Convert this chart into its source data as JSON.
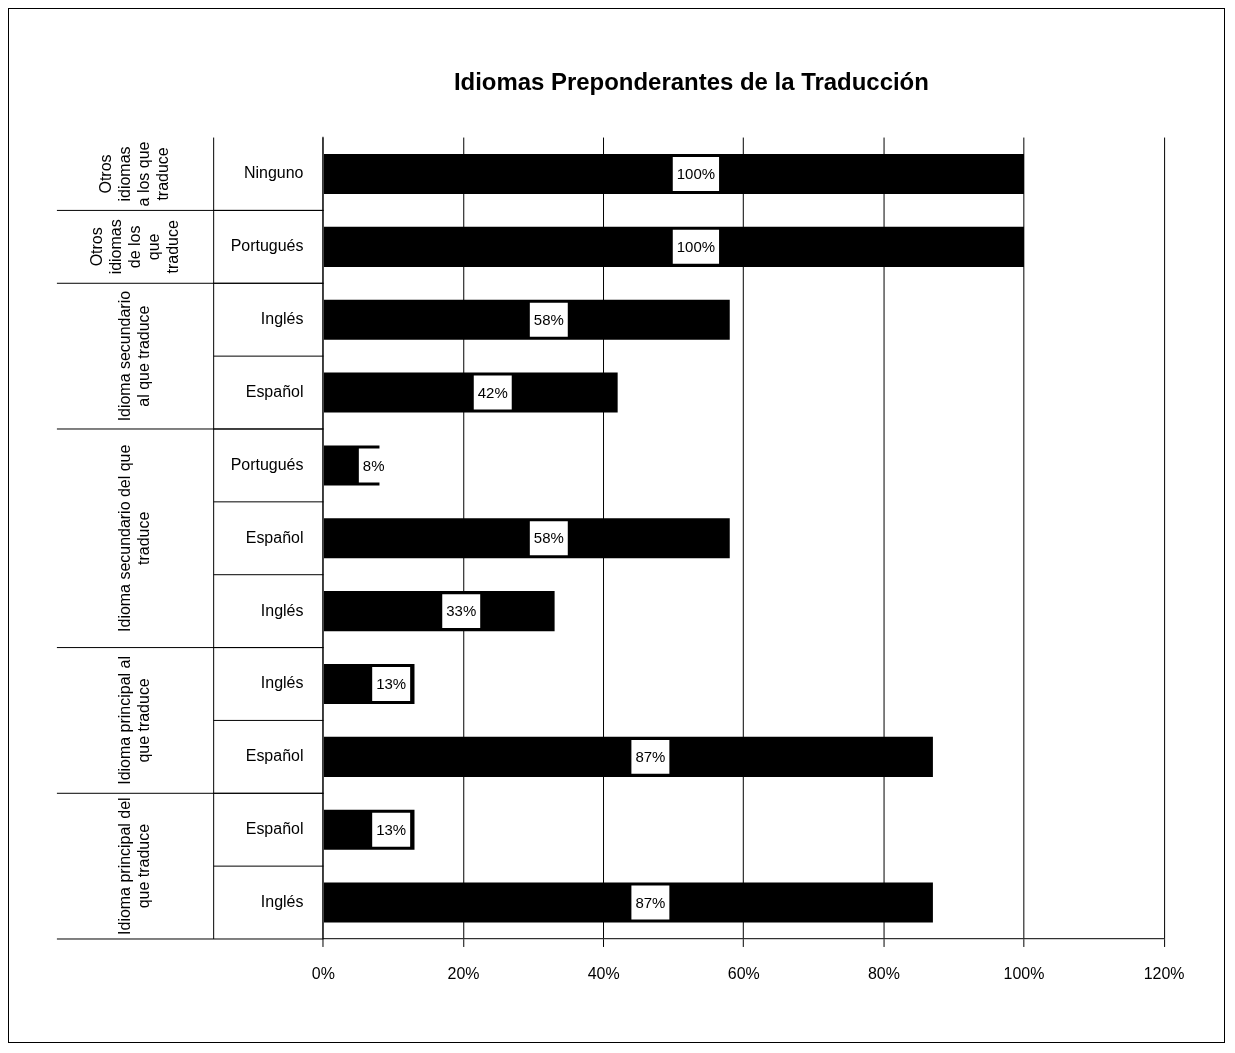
{
  "chart_data": {
    "type": "bar",
    "orientation": "horizontal",
    "title": "Idiomas Preponderantes de la Traducción",
    "categories": [
      "Ninguno",
      "Portugués",
      "Inglés",
      "Español",
      "Portugués",
      "Español",
      "Inglés",
      "Inglés",
      "Español",
      "Español",
      "Inglés"
    ],
    "values": [
      100,
      100,
      58,
      42,
      8,
      58,
      33,
      13,
      87,
      13,
      87
    ],
    "value_labels": [
      "100%",
      "100%",
      "58%",
      "42%",
      "8%",
      "58%",
      "33%",
      "13%",
      "87%",
      "13%",
      "87%"
    ],
    "color": "#000000",
    "xlim": [
      0,
      120
    ],
    "xticks": [
      {
        "value": 0,
        "label": "0%"
      },
      {
        "value": 20,
        "label": "20%"
      },
      {
        "value": 40,
        "label": "40%"
      },
      {
        "value": 60,
        "label": "60%"
      },
      {
        "value": 80,
        "label": "80%"
      },
      {
        "value": 100,
        "label": "100%"
      },
      {
        "value": 120,
        "label": "120%"
      }
    ],
    "grid": "x",
    "legend": false,
    "annotations": [
      "Otros idiomas a los que traduce",
      "Otros idiomas de los que traduce",
      "Idioma secundario al que traduce",
      "Idioma secundario del que traduce",
      "Idioma principal al que traduce",
      "Idioma principal del que traduce"
    ]
  }
}
